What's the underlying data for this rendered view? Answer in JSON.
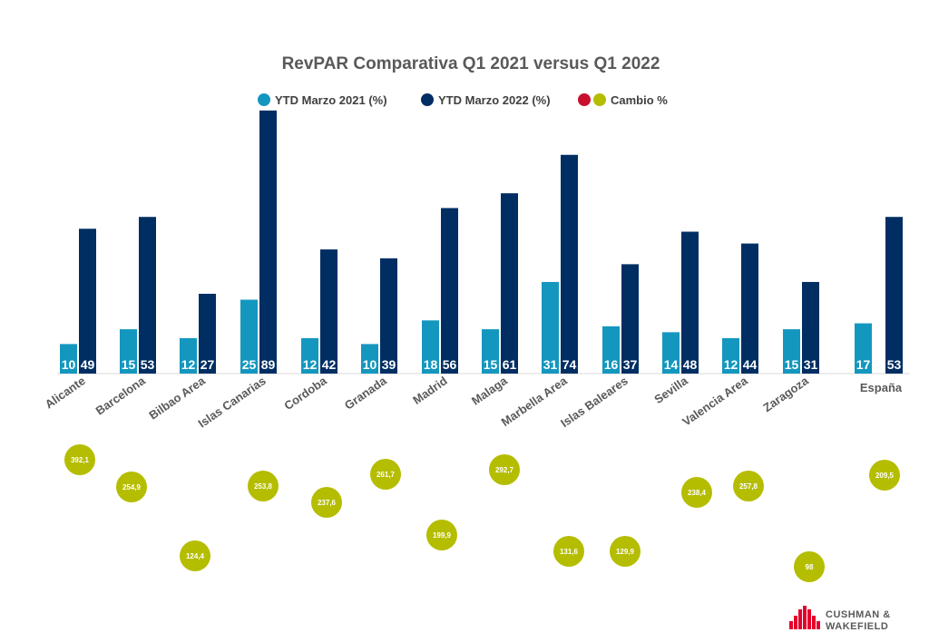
{
  "colors": {
    "ytd2021": "#1497BF",
    "ytd2022": "#002E63",
    "cambio_red": "#C8102E",
    "cambio": "#B5BD00",
    "text": "#595959"
  },
  "chart_data": {
    "type": "bar",
    "title": "RevPAR Comparativa Q1 2021 versus Q1 2022",
    "legend": [
      {
        "label": "YTD Marzo 2021 (%)",
        "color": "#1497BF"
      },
      {
        "label": "YTD Marzo 2022 (%)",
        "color": "#002E63"
      },
      {
        "label": "Cambio %",
        "color": "#B5BD00"
      }
    ],
    "legend_position": "top",
    "categories": [
      "Alicante",
      "Barcelona",
      "Bilbao Area",
      "Islas Canarias",
      "Cordoba",
      "Granada",
      "Madrid",
      "Malaga",
      "Marbella Area",
      "Islas Baleares",
      "Sevilla",
      "Valencia Area",
      "Zaragoza",
      "España"
    ],
    "series": [
      {
        "name": "YTD Marzo 2021 (%)",
        "values": [
          10,
          15,
          12,
          25,
          12,
          10,
          18,
          15,
          31,
          16,
          14,
          12,
          15,
          17
        ]
      },
      {
        "name": "YTD Marzo 2022 (%)",
        "values": [
          49,
          53,
          27,
          89,
          42,
          39,
          56,
          61,
          74,
          37,
          48,
          44,
          31,
          53
        ]
      },
      {
        "name": "Cambio %",
        "values": [
          "392,1",
          "254,9",
          "124,4",
          "253,8",
          "237,6",
          "261,7",
          "199,9",
          "292,7",
          "131,6",
          "129,9",
          "238,4",
          "257,8",
          "98",
          "209,5"
        ]
      }
    ],
    "data_labels": {
      "ytd2021": [
        "10",
        "15",
        "12",
        "25",
        "12",
        "10",
        "18",
        "15",
        "31",
        "16",
        "14",
        "12",
        "15",
        "17"
      ],
      "ytd2022": [
        "49",
        "53",
        "27",
        "89",
        "42",
        "39",
        "56",
        "61",
        "74",
        "37",
        "48",
        "44",
        "31",
        "53"
      ]
    },
    "grid": false
  },
  "logo": {
    "line1": "CUSHMAN &",
    "line2": "WAKEFIELD"
  }
}
